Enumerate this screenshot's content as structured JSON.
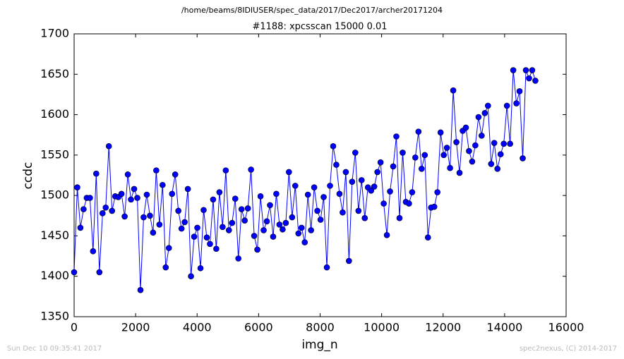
{
  "chart_data": {
    "type": "line",
    "suptitle": "/home/beams/8IDIUSER/spec_data/2017/Dec2017/archer20171204",
    "title": "#1188: xpcsscan 15000 0.01",
    "xlabel": "img_n",
    "ylabel": "ccdc",
    "footer_left": "Sun Dec 10 09:35:41 2017",
    "footer_right": "spec2nexus, (C) 2014-2017",
    "xlim": [
      0,
      16000
    ],
    "xticks": [
      0,
      2000,
      4000,
      6000,
      8000,
      10000,
      12000,
      14000,
      16000
    ],
    "ylim": [
      1350,
      1700
    ],
    "yticks": [
      1350,
      1400,
      1450,
      1500,
      1550,
      1600,
      1650,
      1700
    ],
    "x": [
      0,
      103,
      205,
      308,
      411,
      514,
      616,
      719,
      822,
      925,
      1027,
      1130,
      1233,
      1336,
      1438,
      1541,
      1644,
      1747,
      1849,
      1952,
      2055,
      2158,
      2260,
      2363,
      2466,
      2568,
      2671,
      2774,
      2877,
      2979,
      3082,
      3185,
      3288,
      3390,
      3493,
      3596,
      3699,
      3801,
      3904,
      4007,
      4110,
      4212,
      4315,
      4418,
      4521,
      4623,
      4726,
      4829,
      4932,
      5034,
      5137,
      5240,
      5342,
      5445,
      5548,
      5651,
      5753,
      5856,
      5959,
      6062,
      6164,
      6267,
      6370,
      6473,
      6575,
      6678,
      6781,
      6884,
      6986,
      7089,
      7192,
      7295,
      7397,
      7500,
      7603,
      7705,
      7808,
      7911,
      8014,
      8116,
      8219,
      8322,
      8425,
      8527,
      8630,
      8733,
      8836,
      8938,
      9041,
      9144,
      9247,
      9349,
      9452,
      9555,
      9658,
      9760,
      9863,
      9966,
      10068,
      10171,
      10274,
      10377,
      10479,
      10582,
      10685,
      10788,
      10890,
      10993,
      11096,
      11199,
      11301,
      11404,
      11507,
      11610,
      11712,
      11815,
      11918,
      12021,
      12123,
      12226,
      12329,
      12432,
      12534,
      12637,
      12740,
      12842,
      12945,
      13048,
      13151,
      13253,
      13356,
      13459,
      13562,
      13664,
      13767,
      13870,
      13973,
      14075,
      14178,
      14281,
      14384,
      14486,
      14589,
      14692,
      14795,
      14897,
      15000
    ],
    "series": [
      {
        "color": "#0000ff",
        "values": [
          1405,
          1510,
          1460,
          1483,
          1497,
          1497,
          1431,
          1527,
          1405,
          1478,
          1485,
          1561,
          1481,
          1499,
          1498,
          1502,
          1474,
          1526,
          1495,
          1508,
          1497,
          1383,
          1473,
          1501,
          1475,
          1454,
          1531,
          1464,
          1513,
          1411,
          1435,
          1502,
          1526,
          1481,
          1459,
          1467,
          1508,
          1400,
          1449,
          1460,
          1410,
          1482,
          1448,
          1440,
          1495,
          1434,
          1504,
          1461,
          1531,
          1457,
          1466,
          1496,
          1422,
          1483,
          1469,
          1484,
          1532,
          1450,
          1433,
          1499,
          1457,
          1468,
          1488,
          1449,
          1502,
          1464,
          1458,
          1466,
          1529,
          1473,
          1512,
          1453,
          1460,
          1442,
          1501,
          1457,
          1510,
          1481,
          1470,
          1498,
          1411,
          1512,
          1561,
          1538,
          1502,
          1479,
          1529,
          1419,
          1517,
          1553,
          1481,
          1519,
          1472,
          1510,
          1506,
          1511,
          1529,
          1541,
          1490,
          1451,
          1505,
          1536,
          1573,
          1472,
          1553,
          1492,
          1490,
          1504,
          1547,
          1579,
          1533,
          1550,
          1448,
          1485,
          1486,
          1504,
          1578,
          1550,
          1559,
          1534,
          1630,
          1566,
          1528,
          1580,
          1584,
          1555,
          1542,
          1562,
          1597,
          1574,
          1602,
          1611,
          1539,
          1565,
          1533,
          1551,
          1564,
          1611,
          1564,
          1655,
          1614,
          1629,
          1546,
          1655,
          1645,
          1655,
          1642
        ]
      }
    ]
  }
}
